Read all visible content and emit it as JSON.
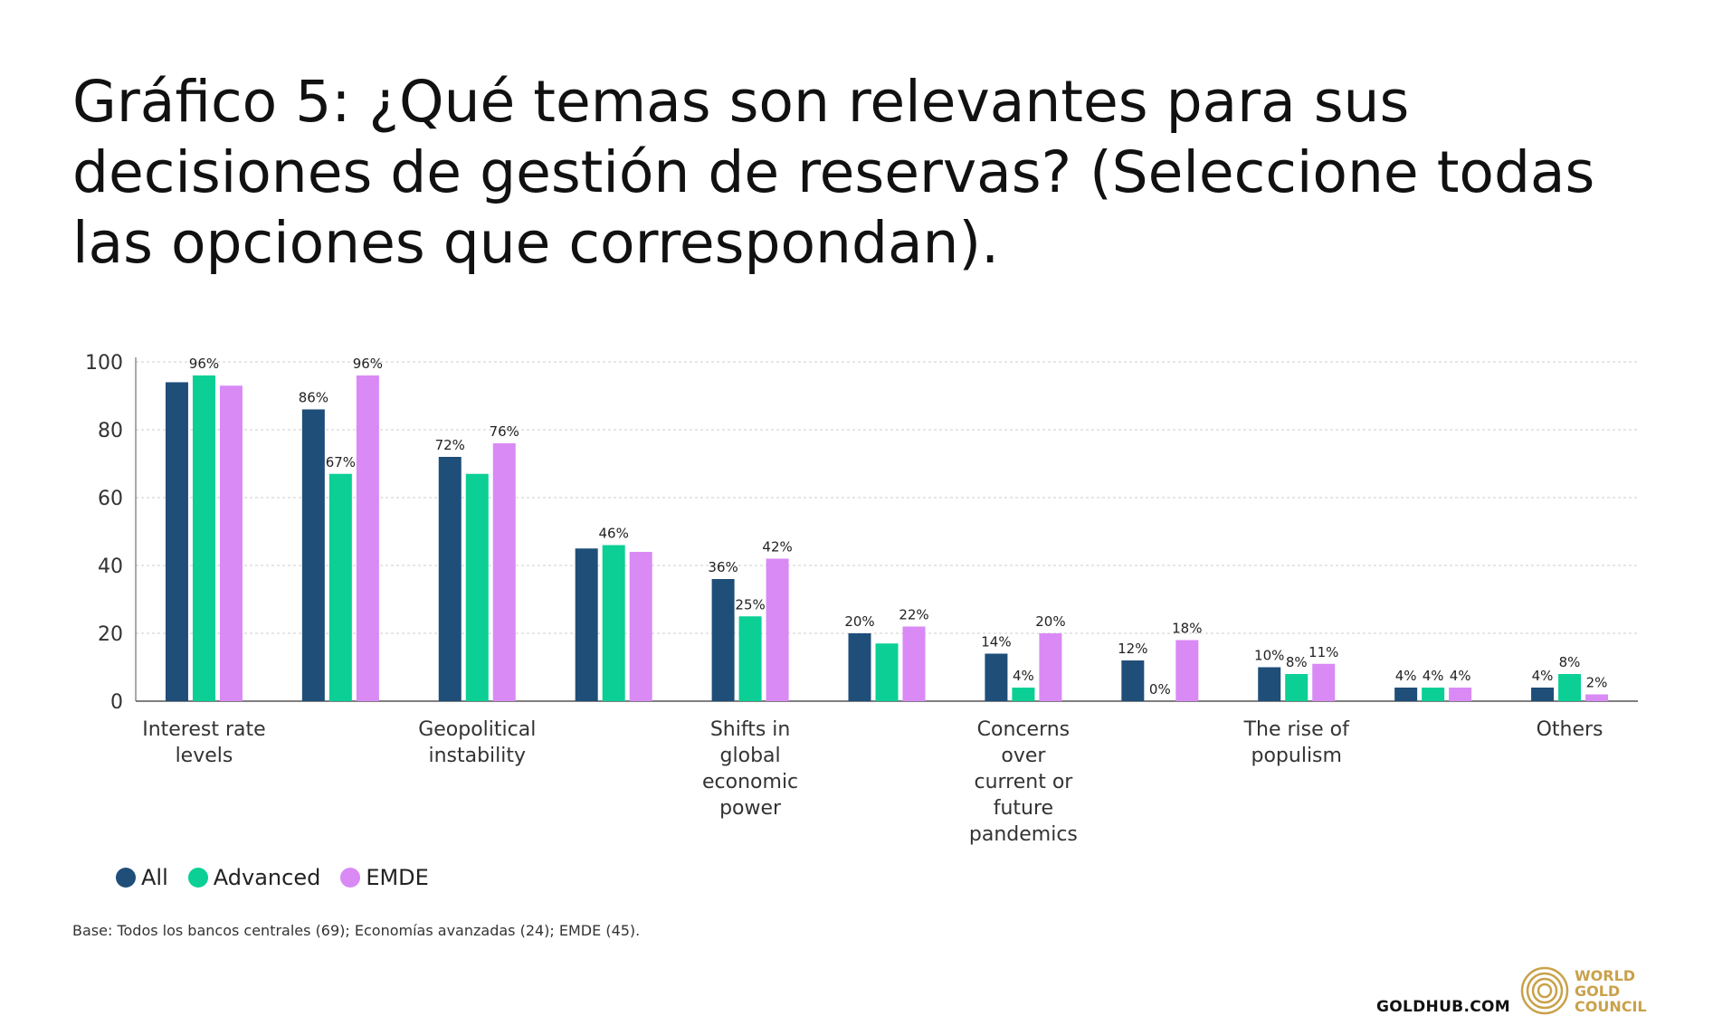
{
  "title": "Gráfico 5: ¿Qué temas son relevantes para sus decisiones de gestión de reservas? (Seleccione todas las opciones que correspondan).",
  "base_note": "Base: Todos los bancos centrales (69); Economías avanzadas (24); EMDE (45).",
  "footer": {
    "url": "GOLDHUB.COM",
    "logo_lines": [
      "WORLD",
      "GOLD",
      "COUNCIL"
    ]
  },
  "colors": {
    "all": "#1f4e79",
    "advanced": "#0ccf95",
    "emde": "#d98af5",
    "grid": "#cccccc",
    "axis": "#555555"
  },
  "chart_data": {
    "type": "bar",
    "title": "",
    "xlabel": "",
    "ylabel": "",
    "ylim": [
      0,
      100
    ],
    "yticks": [
      0,
      20,
      40,
      60,
      80,
      100
    ],
    "grid": true,
    "legend_position": "bottom-left",
    "categories": [
      "Interest rate levels",
      "",
      "Geopolitical instability",
      "",
      "Shifts in global economic power",
      "",
      "Concerns over current or future pandemics",
      "",
      "The rise of populism",
      "",
      "Others"
    ],
    "category_label_lines": [
      [
        "Interest rate",
        "levels"
      ],
      [],
      [
        "Geopolitical",
        "instability"
      ],
      [],
      [
        "Shifts in",
        "global",
        "economic",
        "power"
      ],
      [],
      [
        "Concerns",
        "over",
        "current or",
        "future",
        "pandemics"
      ],
      [],
      [
        "The rise of",
        "populism"
      ],
      [],
      [
        "Others"
      ]
    ],
    "series": [
      {
        "name": "All",
        "values": [
          94,
          86,
          72,
          45,
          36,
          20,
          14,
          12,
          10,
          4,
          4
        ],
        "labels": [
          "",
          "86%",
          "72%",
          "",
          "36%",
          "20%",
          "14%",
          "12%",
          "10%",
          "4%",
          "4%"
        ]
      },
      {
        "name": "Advanced",
        "values": [
          96,
          67,
          67,
          46,
          25,
          17,
          4,
          0,
          8,
          4,
          8
        ],
        "labels": [
          "96%",
          "67%",
          "",
          "46%",
          "25%",
          "",
          "4%",
          "0%",
          "8%",
          "4%",
          "8%"
        ]
      },
      {
        "name": "EMDE",
        "values": [
          93,
          96,
          76,
          44,
          42,
          22,
          20,
          18,
          11,
          4,
          2
        ],
        "labels": [
          "",
          "96%",
          "76%",
          "",
          "42%",
          "22%",
          "20%",
          "18%",
          "11%",
          "4%",
          "2%"
        ]
      }
    ]
  }
}
